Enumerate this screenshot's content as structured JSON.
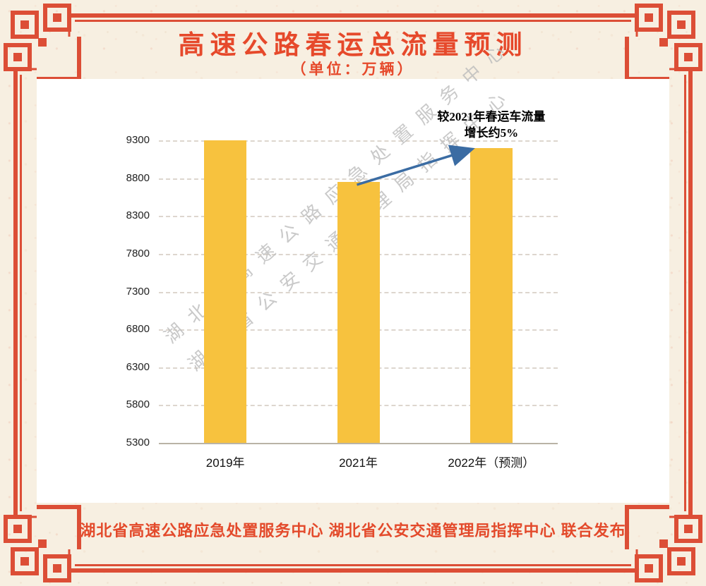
{
  "poster": {
    "title": "高速公路春运总流量预测",
    "subtitle": "（单位：万辆）",
    "annotation_line1": "较2021年春运车流量",
    "annotation_line2": "增长约5%",
    "watermark_line1": "湖北省高速公路应急处置服务中心",
    "watermark_line2": "湖北省公安交通管理局指挥中心",
    "footer": "湖北省高速公路应急处置服务中心 湖北省公安交通管理局指挥中心 联合发布"
  },
  "chart_data": {
    "type": "bar",
    "title": "高速公路春运总流量预测",
    "unit_label": "（单位：万辆）",
    "categories": [
      "2019年",
      "2021年",
      "2022年（预测）"
    ],
    "values": [
      9300,
      8750,
      9200
    ],
    "ylim": [
      5300,
      9300
    ],
    "yticks": [
      5300,
      5800,
      6300,
      6800,
      7300,
      7800,
      8300,
      8800,
      9300
    ],
    "ytick_interval": 500,
    "grid": "horizontal-dashed",
    "legend": "none",
    "annotation": "较2021年春运车流量增长约5%",
    "annotation_arrow": "from 2021年 bar top to 2022年（预测） bar top",
    "bar_color": "#f7c23e",
    "arrow_color": "#3b6ca3"
  },
  "colors": {
    "paper_background": "#f7efe1",
    "border_red": "#dc4e36",
    "title_red": "#e6492b",
    "footer_red": "#e34a2b",
    "card_white": "#ffffff",
    "gridline_gray": "#ddd6ce",
    "watermark_gray": "#bcbcbc",
    "axis_text": "#222222"
  }
}
